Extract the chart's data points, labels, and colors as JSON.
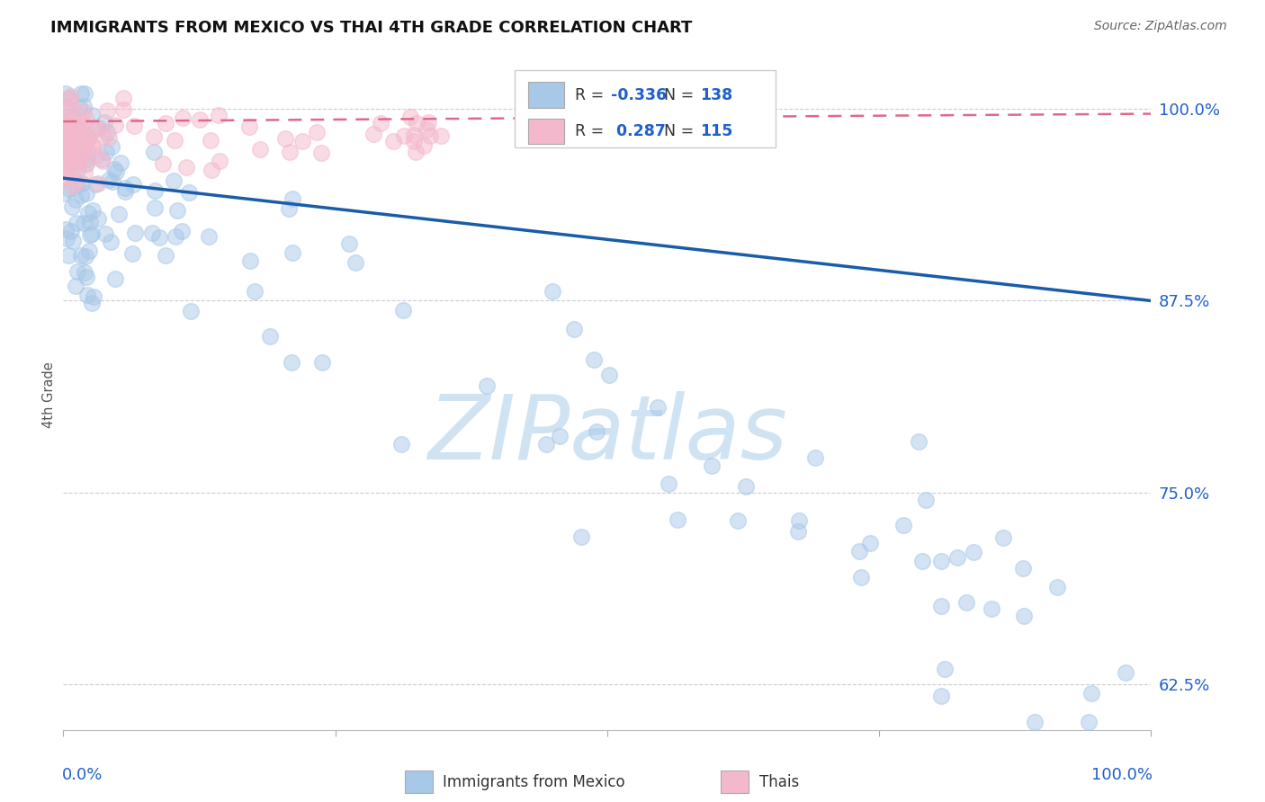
{
  "title": "IMMIGRANTS FROM MEXICO VS THAI 4TH GRADE CORRELATION CHART",
  "source": "Source: ZipAtlas.com",
  "ylabel": "4th Grade",
  "x_min": 0.0,
  "x_max": 1.0,
  "y_min": 0.595,
  "y_max": 1.032,
  "yticks": [
    0.625,
    0.75,
    0.875,
    1.0
  ],
  "ytick_labels": [
    "62.5%",
    "75.0%",
    "87.5%",
    "100.0%"
  ],
  "blue_R": -0.336,
  "blue_N": 138,
  "pink_R": 0.287,
  "pink_N": 115,
  "blue_scatter_color": "#a8c8e8",
  "pink_scatter_color": "#f4b8cc",
  "blue_line_color": "#1a5ca8",
  "pink_line_color": "#e06888",
  "blue_text_color": "#2060cc",
  "grid_color": "#cccccc",
  "title_color": "#111111",
  "source_color": "#666666",
  "watermark_zip_color": "#c8def0",
  "watermark_atlas_color": "#a0c8e8",
  "legend_box_color": "#eeeeee",
  "blue_line_start_y": 0.955,
  "blue_line_end_y": 0.875,
  "pink_line_start_y": 0.992,
  "pink_line_end_y": 0.997
}
